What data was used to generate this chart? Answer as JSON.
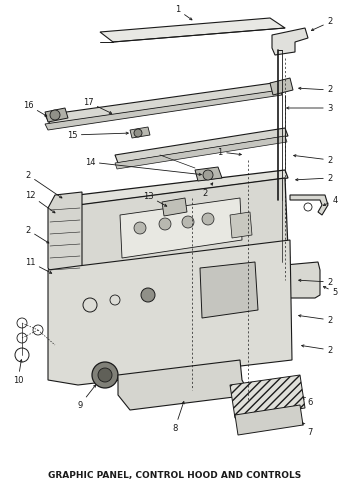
{
  "title": "GRAPHIC PANEL, CONTROL HOOD AND CONTROLS",
  "bg_color": "#ffffff",
  "fig_width": 3.5,
  "fig_height": 4.9,
  "dpi": 100,
  "title_fontsize": 6.5,
  "label_fontsize": 6.0
}
